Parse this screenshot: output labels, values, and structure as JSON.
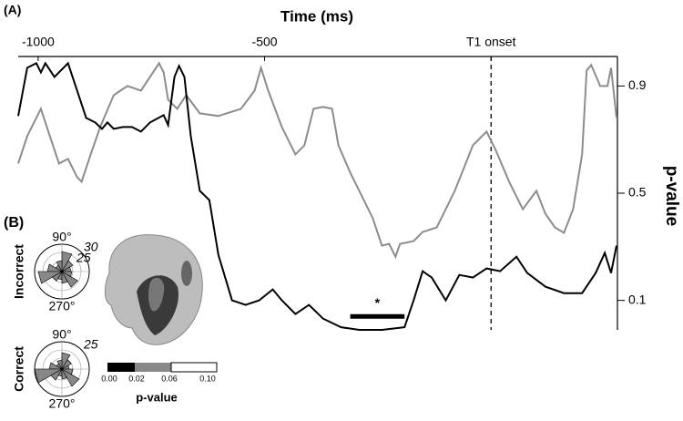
{
  "chart_data": {
    "type": "line",
    "panel_label": "(A)",
    "title": "Time (ms)",
    "y_label": "p-value",
    "xlim": [
      -1044,
      279
    ],
    "xticks": [
      -1000,
      -500,
      {
        "value": 0,
        "label": "T1 onset"
      }
    ],
    "ylim": [
      -0.01,
      1.01
    ],
    "yticks": [
      0.9,
      0.5,
      0.1
    ],
    "onset_line": 0,
    "x": [
      -1044,
      -1024,
      -1004,
      -994,
      -984,
      -964,
      -934,
      -914,
      -894,
      -874,
      -859,
      -847,
      -833,
      -813,
      -793,
      -773,
      -753,
      -723,
      -713,
      -699,
      -689,
      -677,
      -663,
      -643,
      -622,
      -602,
      -572,
      -542,
      -512,
      -482,
      -462,
      -432,
      -402,
      -371,
      -331,
      -291,
      -241,
      -191,
      -171,
      -151,
      -131,
      -100,
      -70,
      -40,
      -10,
      20,
      56,
      80,
      120,
      161,
      201,
      231,
      251,
      265,
      277
    ],
    "series": [
      {
        "color": "#000000",
        "values": [
          0.788,
          0.968,
          0.985,
          0.951,
          0.985,
          0.934,
          0.985,
          0.883,
          0.781,
          0.764,
          0.74,
          0.764,
          0.74,
          0.747,
          0.747,
          0.73,
          0.764,
          0.791,
          0.754,
          0.934,
          0.975,
          0.934,
          0.713,
          0.509,
          0.474,
          0.27,
          0.1,
          0.083,
          0.1,
          0.141,
          0.1,
          0.049,
          0.083,
          0.032,
          0.0,
          -0.01,
          -0.01,
          0.0,
          0.1,
          0.209,
          0.185,
          0.1,
          0.195,
          0.185,
          0.219,
          0.209,
          0.263,
          0.202,
          0.151,
          0.127,
          0.127,
          0.202,
          0.277,
          0.202,
          0.304
        ]
      }
    ],
    "series2_x": [
      -1044,
      -1024,
      -994,
      -974,
      -954,
      -934,
      -914,
      -904,
      -884,
      -863,
      -833,
      -803,
      -773,
      -753,
      -733,
      -723,
      -713,
      -693,
      -673,
      -643,
      -602,
      -552,
      -522,
      -508,
      -492,
      -462,
      -432,
      -412,
      -392,
      -371,
      -351,
      -337,
      -311,
      -291,
      -261,
      -241,
      -225,
      -211,
      -201,
      -171,
      -151,
      -120,
      -80,
      -40,
      -10,
      10,
      40,
      70,
      100,
      120,
      141,
      161,
      181,
      201,
      211,
      221,
      241,
      257,
      265,
      277
    ],
    "series2": {
      "color": "#8c8c8c",
      "values": [
        0.611,
        0.713,
        0.815,
        0.713,
        0.611,
        0.628,
        0.56,
        0.543,
        0.645,
        0.747,
        0.866,
        0.9,
        0.883,
        0.934,
        0.985,
        0.951,
        0.849,
        0.815,
        0.866,
        0.798,
        0.788,
        0.815,
        0.883,
        0.968,
        0.883,
        0.747,
        0.645,
        0.679,
        0.815,
        0.822,
        0.815,
        0.679,
        0.577,
        0.509,
        0.406,
        0.304,
        0.311,
        0.263,
        0.311,
        0.321,
        0.355,
        0.372,
        0.509,
        0.679,
        0.73,
        0.662,
        0.543,
        0.44,
        0.509,
        0.423,
        0.372,
        0.352,
        0.44,
        0.645,
        0.958,
        0.978,
        0.9,
        0.9,
        0.968,
        0.781
      ]
    },
    "significance": {
      "label": "*",
      "x": [
        -311,
        -191
      ],
      "y": 0.04
    }
  },
  "inset": {
    "panel_label": "(B)",
    "polar": [
      {
        "label": "Incorrect",
        "top": "90°",
        "bottom": "270°",
        "rings": [
          "30",
          "25"
        ]
      },
      {
        "label": "Correct",
        "top": "90°",
        "bottom": "270°",
        "rings": [
          "25"
        ]
      }
    ],
    "colorbar": {
      "ticks": [
        "0.00",
        "0.02",
        "0.06",
        "0.10"
      ],
      "label": "p-value"
    }
  }
}
